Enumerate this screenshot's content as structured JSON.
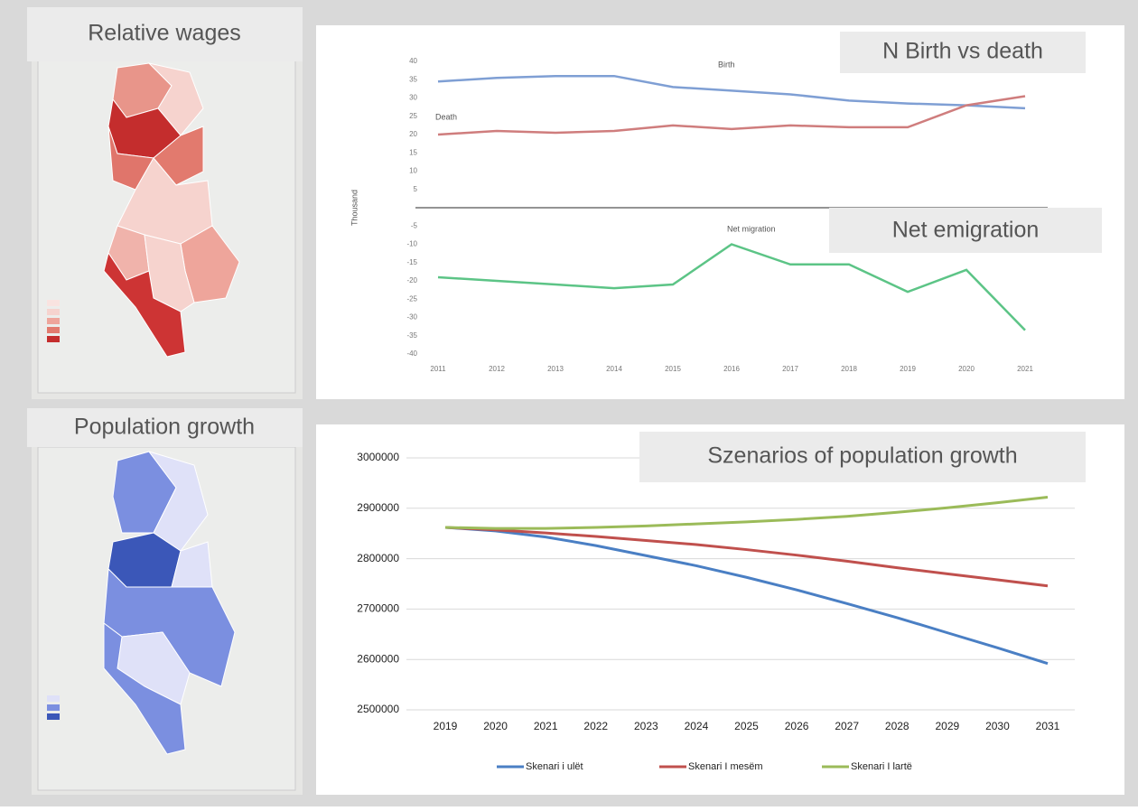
{
  "maps": [
    {
      "title": "Relative wages"
    },
    {
      "title": "Population growth"
    }
  ],
  "chart_data": [
    {
      "type": "line",
      "title": "N  Birth vs death",
      "subtitle": "Net emigration",
      "y_label": "Thousand",
      "categories": [
        "2011",
        "2012",
        "2013",
        "2014",
        "2015",
        "2016",
        "2017",
        "2018",
        "2019",
        "2020",
        "2021"
      ],
      "ylim": [
        -40,
        40
      ],
      "yticks": [
        40,
        35,
        30,
        25,
        20,
        15,
        10,
        5,
        -5,
        -10,
        -15,
        -20,
        -25,
        -30,
        -35,
        -40
      ],
      "grid": false,
      "series": [
        {
          "name": "Birth",
          "color": "#7f9fd4",
          "values": [
            34.5,
            35.5,
            36,
            36,
            33,
            32,
            31,
            29.3,
            28.5,
            28,
            27.2
          ]
        },
        {
          "name": "Death",
          "color": "#cf7d7d",
          "values": [
            20,
            21,
            20.5,
            21,
            22.5,
            21.5,
            22.5,
            22,
            22,
            28,
            30.5
          ]
        },
        {
          "name": "Net migration",
          "color": "#5cc486",
          "values": [
            -19,
            -20,
            -21,
            -22,
            -21,
            -10,
            -15.5,
            -15.5,
            -23,
            -17,
            -33.5
          ]
        }
      ]
    },
    {
      "type": "line",
      "title": "Szenarios of population growth",
      "categories": [
        "2019",
        "2020",
        "2021",
        "2022",
        "2023",
        "2024",
        "2025",
        "2026",
        "2027",
        "2028",
        "2029",
        "2030",
        "2031"
      ],
      "ylim": [
        2500000,
        3000000
      ],
      "yticks": [
        2500000,
        2600000,
        2700000,
        2800000,
        2900000,
        3000000
      ],
      "grid": true,
      "legend": "bottom",
      "series": [
        {
          "name": "Skenari i ulët",
          "color": "#4a7fc4",
          "values": [
            2862000,
            2855000,
            2843000,
            2826000,
            2806000,
            2786000,
            2763000,
            2738000,
            2711000,
            2683000,
            2653000,
            2623000,
            2592000
          ]
        },
        {
          "name": "Skenari I mesëm",
          "color": "#c0504d",
          "values": [
            2862000,
            2857000,
            2851000,
            2844000,
            2836000,
            2828000,
            2818000,
            2807000,
            2795000,
            2782000,
            2770000,
            2758000,
            2746000
          ]
        },
        {
          "name": "Skenari I lartë",
          "color": "#9bbb59",
          "values": [
            2862000,
            2860000,
            2860000,
            2862000,
            2865000,
            2869000,
            2873000,
            2878000,
            2884000,
            2892000,
            2901000,
            2911000,
            2922000
          ]
        }
      ]
    }
  ]
}
